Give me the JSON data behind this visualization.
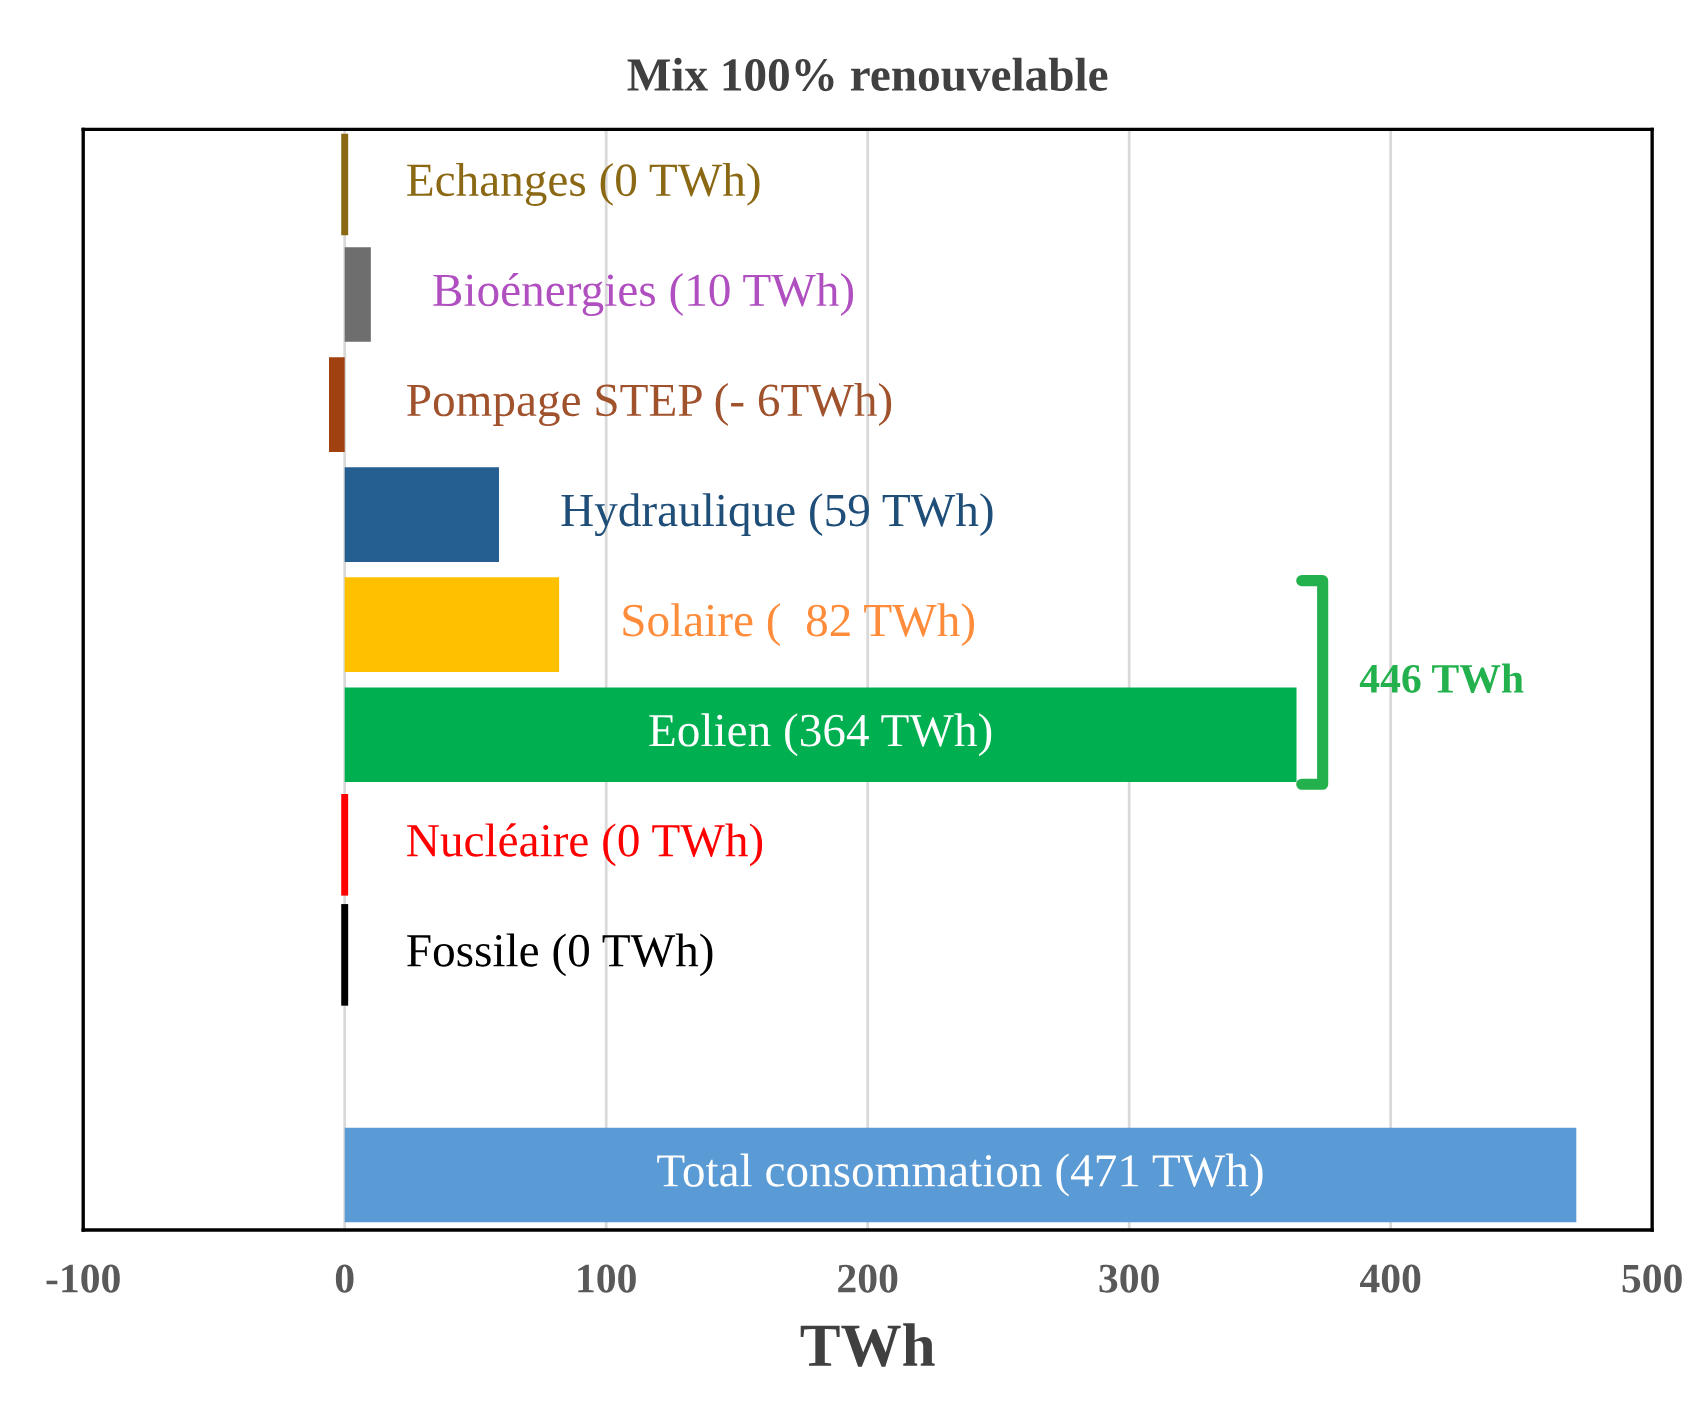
{
  "chart_data": {
    "type": "bar",
    "orientation": "horizontal",
    "title": "Mix 100% renouvelable",
    "xlabel": "TWh",
    "categories": [
      null,
      null,
      null,
      null,
      null,
      null,
      null,
      null,
      null,
      null
    ],
    "values": [
      0,
      10,
      -6,
      59,
      82,
      364,
      0,
      0,
      null,
      471
    ],
    "colors": [
      "#8b6914",
      "#6e6e6e",
      "#a0420f",
      "#255e91",
      "#ffc000",
      "#00b050",
      "#ff0000",
      "#000000",
      "#ffffff",
      "#5b9bd5"
    ],
    "value_labels": [
      "Echanges (0 TWh)",
      "Bioénergies (10 TWh)",
      "Pompage STEP (- 6TWh)",
      "Hydraulique (59 TWh)",
      "Solaire (  82 TWh)",
      "Eolien (364 TWh)",
      "Nucléaire (0 TWh)",
      "Fossile (0 TWh)",
      null,
      "Total consommation (471 TWh)"
    ],
    "annotations": [
      "446 TWh"
    ],
    "xlim": [
      -100,
      500
    ],
    "xticks": [
      -100,
      0,
      100,
      200,
      300,
      400,
      500
    ],
    "grid": "x",
    "tick_labels": "x",
    "legend": false
  }
}
